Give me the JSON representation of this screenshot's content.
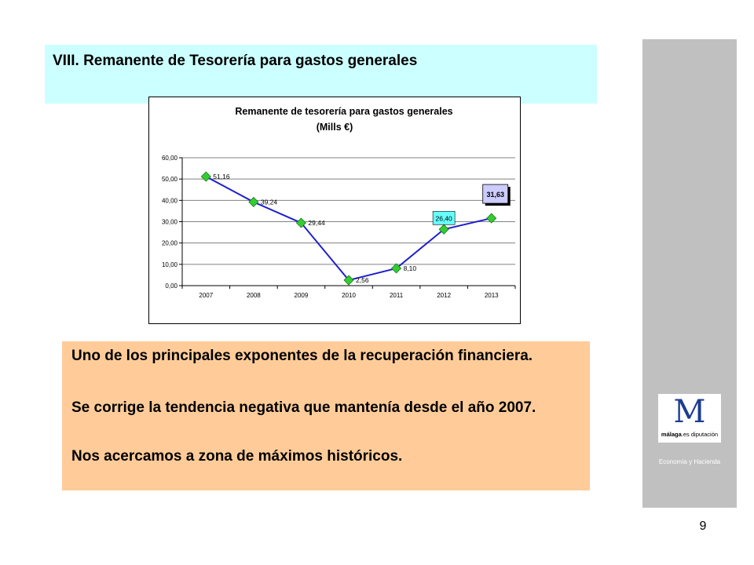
{
  "slide": {
    "title": "VIII. Remanente de Tesorería para gastos generales",
    "paragraphs": [
      "Uno de los principales exponentes de la recuperación financiera.",
      "Se corrige la tendencia negativa que mantenía desde el año 2007.",
      "Nos acercamos a zona de máximos históricos."
    ],
    "page_number": "9"
  },
  "logo": {
    "main": "M",
    "bold": "málaga",
    "rest": ".es diputación",
    "department": "Economía y Hacienda"
  },
  "colors": {
    "title_bg": "#ccffff",
    "text_bg": "#ffcc99",
    "side_panel": "#c0c0c0",
    "line": "#1f1fcc",
    "marker": "#33cc33",
    "highlight_2012": "#66ffff",
    "highlight_2013": "#ccccff"
  },
  "chart_data": {
    "type": "line",
    "title": "Remanente de tesorería para gastos generales",
    "subtitle": "(Mills €)",
    "categories": [
      "2007",
      "2008",
      "2009",
      "2010",
      "2011",
      "2012",
      "2013"
    ],
    "values": [
      51.16,
      39.24,
      29.44,
      2.56,
      8.1,
      26.4,
      31.63
    ],
    "value_labels": [
      "51,16",
      "39,24",
      "29,44",
      "2,56",
      "8,10",
      "26,40",
      "31,63"
    ],
    "y_ticks": [
      "0,00",
      "10,00",
      "20,00",
      "30,00",
      "40,00",
      "50,00",
      "60,00"
    ],
    "ylim": [
      0,
      60
    ],
    "grid": true,
    "legend": "none",
    "highlighted_labels": {
      "2012": "cyan",
      "2013": "lavender"
    }
  }
}
